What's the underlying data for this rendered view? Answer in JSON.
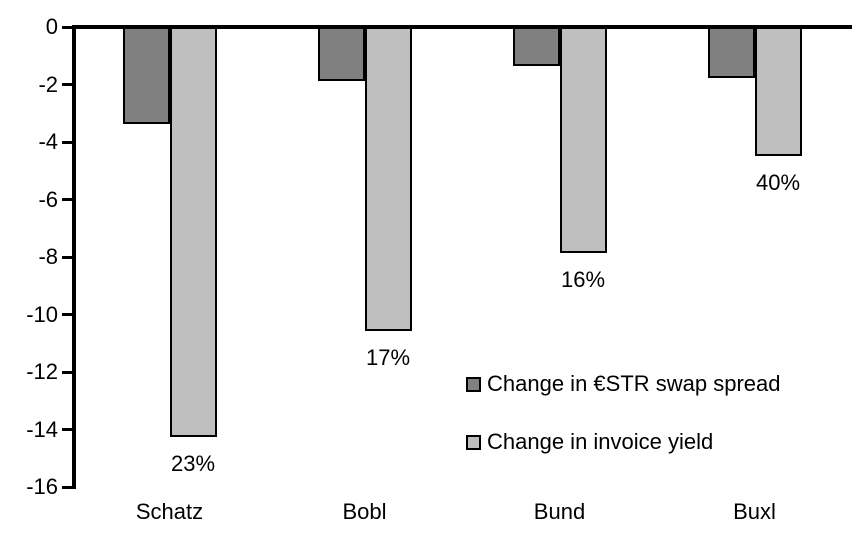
{
  "chart_data": {
    "type": "bar",
    "title": "",
    "xlabel": "",
    "ylabel": "",
    "categories": [
      "Schatz",
      "Bobl",
      "Bund",
      "Buxl"
    ],
    "series": [
      {
        "name": "Change in €STR swap spread",
        "color": "#808080",
        "values": [
          -3.3,
          -1.8,
          -1.3,
          -1.7
        ]
      },
      {
        "name": "Change in invoice yield",
        "color": "#bfbfbf",
        "values": [
          -14.2,
          -10.5,
          -7.8,
          -4.4
        ],
        "point_labels": [
          "23%",
          "17%",
          "16%",
          "40%"
        ]
      }
    ],
    "ylim": [
      -16,
      0
    ],
    "yticks": [
      0,
      -2,
      -4,
      -6,
      -8,
      -10,
      -12,
      -14,
      -16
    ],
    "grid": false,
    "legend_position": "inside-lower-right",
    "axis_color": "#000000",
    "bar_outline_color": "#000000"
  }
}
